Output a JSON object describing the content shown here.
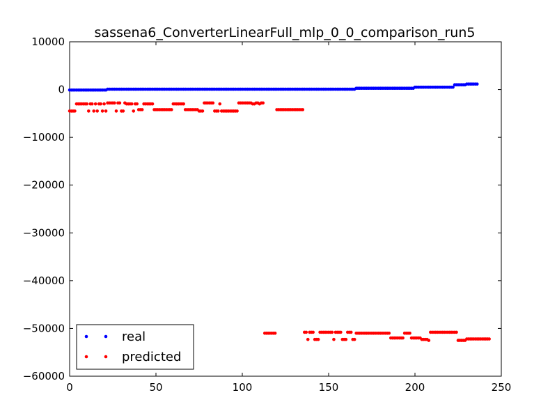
{
  "chart_data": {
    "type": "scatter",
    "title": "sassena6_ConverterLinearFull_mlp_0_0_comparison_run5",
    "xlabel": "",
    "ylabel": "",
    "xlim": [
      0,
      250
    ],
    "ylim": [
      -60000,
      10000
    ],
    "x_ticks": [
      0,
      50,
      100,
      150,
      200,
      250
    ],
    "y_ticks": [
      10000,
      0,
      -10000,
      -20000,
      -30000,
      -40000,
      -50000,
      -60000
    ],
    "x_tick_labels": [
      "0",
      "50",
      "100",
      "150",
      "200",
      "250"
    ],
    "y_tick_labels": [
      "10000",
      "0",
      "−10000",
      "−20000",
      "−30000",
      "−40000",
      "−50000",
      "−60000"
    ],
    "grid": false,
    "legend_position": "lower-left",
    "series": [
      {
        "name": "real",
        "color": "#0000ff",
        "x_start": 0,
        "values": [
          -100,
          -100,
          -100,
          -100,
          -100,
          -100,
          -100,
          -100,
          -100,
          -100,
          -100,
          -100,
          -100,
          -100,
          -100,
          -100,
          -100,
          -100,
          -100,
          -100,
          -100,
          -100,
          80,
          80,
          80,
          80,
          80,
          80,
          80,
          80,
          80,
          80,
          80,
          80,
          80,
          80,
          80,
          80,
          80,
          80,
          80,
          80,
          80,
          80,
          80,
          80,
          80,
          80,
          80,
          80,
          80,
          80,
          80,
          80,
          80,
          80,
          80,
          80,
          80,
          80,
          80,
          80,
          80,
          80,
          80,
          80,
          80,
          80,
          80,
          80,
          80,
          80,
          80,
          80,
          80,
          80,
          80,
          80,
          80,
          80,
          80,
          80,
          80,
          80,
          80,
          80,
          80,
          80,
          80,
          80,
          80,
          80,
          80,
          80,
          80,
          80,
          80,
          80,
          80,
          80,
          80,
          80,
          80,
          80,
          80,
          80,
          80,
          80,
          80,
          80,
          80,
          80,
          80,
          80,
          80,
          80,
          80,
          80,
          80,
          80,
          80,
          80,
          80,
          80,
          80,
          80,
          80,
          80,
          80,
          80,
          80,
          80,
          80,
          80,
          80,
          80,
          80,
          80,
          80,
          80,
          80,
          80,
          80,
          80,
          80,
          80,
          80,
          80,
          80,
          80,
          80,
          80,
          80,
          80,
          80,
          80,
          80,
          80,
          80,
          80,
          80,
          80,
          80,
          80,
          80,
          80,
          270,
          270,
          270,
          270,
          270,
          270,
          270,
          270,
          270,
          270,
          270,
          270,
          270,
          270,
          270,
          270,
          270,
          270,
          270,
          270,
          270,
          270,
          270,
          270,
          270,
          270,
          270,
          270,
          270,
          270,
          270,
          270,
          270,
          270,
          500,
          500,
          500,
          500,
          500,
          500,
          500,
          500,
          500,
          500,
          500,
          500,
          500,
          500,
          500,
          500,
          500,
          500,
          500,
          500,
          500,
          500,
          500,
          1000,
          1000,
          1000,
          1000,
          1000,
          1000,
          1000,
          1150,
          1150,
          1150,
          1150,
          1150,
          1150,
          1150
        ]
      },
      {
        "name": "predicted",
        "color": "#ff0000",
        "x_start": 0,
        "values": [
          -4500,
          -4500,
          -4500,
          -4500,
          -3000,
          -3000,
          -3000,
          -3000,
          -3000,
          -3000,
          -3000,
          -4500,
          -3000,
          -3000,
          -4500,
          -3000,
          -4500,
          -3000,
          -3000,
          -4500,
          -3000,
          -4500,
          -2800,
          -2800,
          -2800,
          -2800,
          -2800,
          -4500,
          -2800,
          -2800,
          -4500,
          -4500,
          -2800,
          -3000,
          -3000,
          -3000,
          -3000,
          -4500,
          -3000,
          -3000,
          -4200,
          -4200,
          -4200,
          -3000,
          -3000,
          -3000,
          -3000,
          -3000,
          -3000,
          -4200,
          -4200,
          -4200,
          -4200,
          -4200,
          -4200,
          -4200,
          -4200,
          -4200,
          -4200,
          -4200,
          -3000,
          -3000,
          -3000,
          -3000,
          -3000,
          -3000,
          -3000,
          -4200,
          -4200,
          -4200,
          -4200,
          -4200,
          -4200,
          -4200,
          -4200,
          -4500,
          -4500,
          -4500,
          -2800,
          -2800,
          -2800,
          -2800,
          -2800,
          -2800,
          -4500,
          -4500,
          -4500,
          -3000,
          -4500,
          -4500,
          -4500,
          -4500,
          -4500,
          -4500,
          -4500,
          -4500,
          -4500,
          -4500,
          -2800,
          -2800,
          -2800,
          -2800,
          -2800,
          -2800,
          -2800,
          -2800,
          -3000,
          -3000,
          -2800,
          -2800,
          -3000,
          -2800,
          -2800,
          -51000,
          -51000,
          -51000,
          -51000,
          -51000,
          -51000,
          -51000,
          -4200,
          -4200,
          -4200,
          -4200,
          -4200,
          -4200,
          -4200,
          -4200,
          -4200,
          -4200,
          -4200,
          -4200,
          -4200,
          -4200,
          -4200,
          -4200,
          -50800,
          -50800,
          -52300,
          -50800,
          -50800,
          -50800,
          -52300,
          -52300,
          -52300,
          -50800,
          -50800,
          -50800,
          -50800,
          -50800,
          -50800,
          -50800,
          -50800,
          -52300,
          -50800,
          -50800,
          -50800,
          -50800,
          -52300,
          -52300,
          -52300,
          -50800,
          -50800,
          -50800,
          -52300,
          -52300,
          -51000,
          -51000,
          -51000,
          -51000,
          -51000,
          -51000,
          -51000,
          -51000,
          -51000,
          -51000,
          -51000,
          -51000,
          -51000,
          -51000,
          -51000,
          -51000,
          -51000,
          -51000,
          -51000,
          -51000,
          -52000,
          -52000,
          -52000,
          -52000,
          -52000,
          -52000,
          -52000,
          -52000,
          -51000,
          -51000,
          -51000,
          -51000,
          -52000,
          -52000,
          -52000,
          -52000,
          -52000,
          -52000,
          -52300,
          -52300,
          -52300,
          -52300,
          -52500,
          -50800,
          -50800,
          -50800,
          -50800,
          -50800,
          -50800,
          -50800,
          -50800,
          -50800,
          -50800,
          -50800,
          -50800,
          -50800,
          -50800,
          -50800,
          -50800,
          -52500,
          -52500,
          -52500,
          -52500,
          -52500,
          -52200,
          -52200,
          -52200,
          -52200,
          -52200,
          -52200,
          -52200,
          -52200,
          -52200,
          -52200,
          -52200,
          -52200,
          -52200,
          -52200
        ]
      }
    ]
  }
}
